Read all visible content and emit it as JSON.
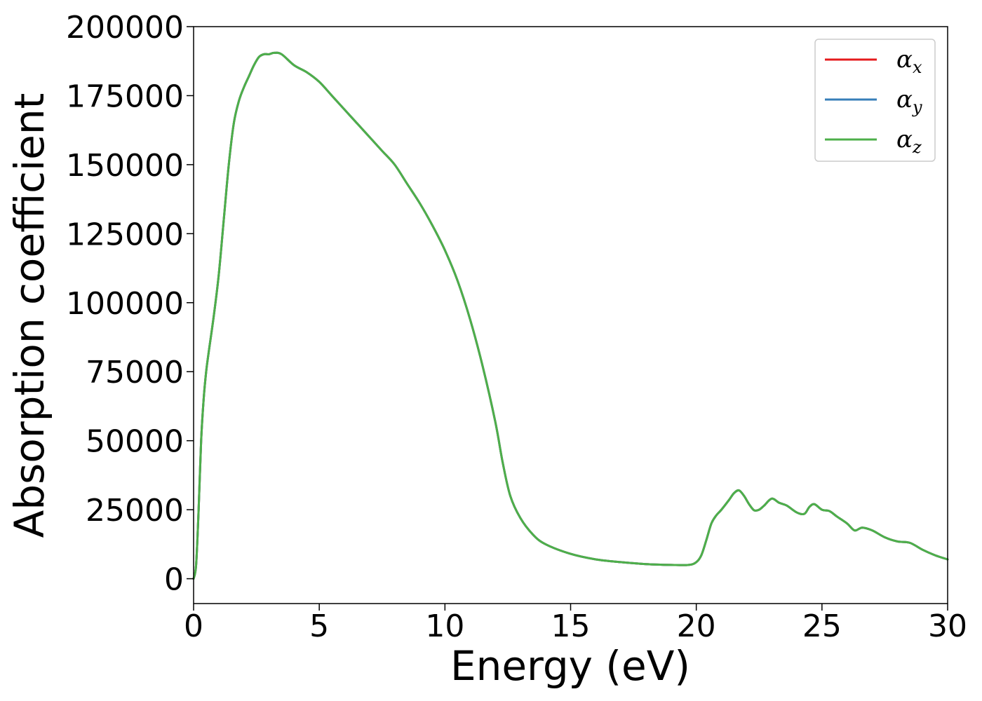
{
  "chart_data": {
    "type": "line",
    "title": "",
    "xlabel": "Energy (eV)",
    "ylabel": "Absorption coefficient",
    "xlim": [
      0,
      30
    ],
    "ylim": [
      -9000,
      200000
    ],
    "xticks": [
      0,
      5,
      10,
      15,
      20,
      25,
      30
    ],
    "yticks": [
      0,
      25000,
      50000,
      75000,
      100000,
      125000,
      150000,
      175000,
      200000
    ],
    "grid": false,
    "legend_position": "top-right",
    "x": [
      0,
      0.1,
      0.2,
      0.3,
      0.4,
      0.5,
      0.6,
      0.8,
      1.0,
      1.2,
      1.4,
      1.6,
      1.8,
      2.0,
      2.2,
      2.4,
      2.6,
      2.8,
      3.0,
      3.2,
      3.5,
      4.0,
      4.5,
      5.0,
      5.5,
      6.0,
      6.5,
      7.0,
      7.5,
      8.0,
      8.5,
      9.0,
      9.5,
      10.0,
      10.5,
      11.0,
      11.5,
      12.0,
      12.3,
      12.6,
      13.0,
      13.5,
      14.0,
      15.0,
      16.0,
      17.0,
      18.0,
      19.0,
      19.7,
      20.0,
      20.2,
      20.4,
      20.6,
      20.8,
      21.0,
      21.3,
      21.5,
      21.7,
      21.9,
      22.1,
      22.3,
      22.5,
      22.7,
      23.0,
      23.3,
      23.6,
      24.0,
      24.3,
      24.5,
      24.7,
      25.0,
      25.3,
      25.6,
      26.0,
      26.3,
      26.6,
      27.0,
      27.5,
      28.0,
      28.5,
      29.0,
      29.5,
      30.0
    ],
    "series": [
      {
        "name": "αx",
        "symbol": "α",
        "subscript": "x",
        "color": "#e41a1c",
        "values": [
          0,
          5000,
          25000,
          50000,
          65000,
          75000,
          82000,
          95000,
          110000,
          130000,
          150000,
          165000,
          173000,
          178000,
          182000,
          186000,
          189000,
          190000,
          190000,
          190500,
          190000,
          186000,
          183500,
          180000,
          175000,
          170000,
          165000,
          160000,
          155000,
          150000,
          143000,
          136000,
          128000,
          119000,
          108000,
          94000,
          77000,
          57000,
          42000,
          30000,
          22000,
          16000,
          12500,
          9000,
          7000,
          6000,
          5300,
          5000,
          5000,
          6000,
          8500,
          14000,
          20000,
          23000,
          25000,
          28500,
          31000,
          32000,
          30000,
          27000,
          24800,
          25000,
          26500,
          29000,
          27500,
          26500,
          24000,
          23500,
          26000,
          27000,
          25000,
          24500,
          22500,
          20000,
          17500,
          18500,
          17500,
          15000,
          13500,
          13000,
          10500,
          8500,
          7000
        ]
      },
      {
        "name": "αy",
        "symbol": "α",
        "subscript": "y",
        "color": "#377eb8",
        "values": [
          0,
          5000,
          25000,
          50000,
          65000,
          75000,
          82000,
          95000,
          110000,
          130000,
          150000,
          165000,
          173000,
          178000,
          182000,
          186000,
          189000,
          190000,
          190000,
          190500,
          190000,
          186000,
          183500,
          180000,
          175000,
          170000,
          165000,
          160000,
          155000,
          150000,
          143000,
          136000,
          128000,
          119000,
          108000,
          94000,
          77000,
          57000,
          42000,
          30000,
          22000,
          16000,
          12500,
          9000,
          7000,
          6000,
          5300,
          5000,
          5000,
          6000,
          8500,
          14000,
          20000,
          23000,
          25000,
          28500,
          31000,
          32000,
          30000,
          27000,
          24800,
          25000,
          26500,
          29000,
          27500,
          26500,
          24000,
          23500,
          26000,
          27000,
          25000,
          24500,
          22500,
          20000,
          17500,
          18500,
          17500,
          15000,
          13500,
          13000,
          10500,
          8500,
          7000
        ]
      },
      {
        "name": "αz",
        "symbol": "α",
        "subscript": "z",
        "color": "#4daf4a",
        "values": [
          0,
          5000,
          25000,
          50000,
          65000,
          75000,
          82000,
          95000,
          110000,
          130000,
          150000,
          165000,
          173000,
          178000,
          182000,
          186000,
          189000,
          190000,
          190000,
          190500,
          190000,
          186000,
          183500,
          180000,
          175000,
          170000,
          165000,
          160000,
          155000,
          150000,
          143000,
          136000,
          128000,
          119000,
          108000,
          94000,
          77000,
          57000,
          42000,
          30000,
          22000,
          16000,
          12500,
          9000,
          7000,
          6000,
          5300,
          5000,
          5000,
          6000,
          8500,
          14000,
          20000,
          23000,
          25000,
          28500,
          31000,
          32000,
          30000,
          27000,
          24800,
          25000,
          26500,
          29000,
          27500,
          26500,
          24000,
          23500,
          26000,
          27000,
          25000,
          24500,
          22500,
          20000,
          17500,
          18500,
          17500,
          15000,
          13500,
          13000,
          10500,
          8500,
          7000
        ]
      }
    ]
  }
}
